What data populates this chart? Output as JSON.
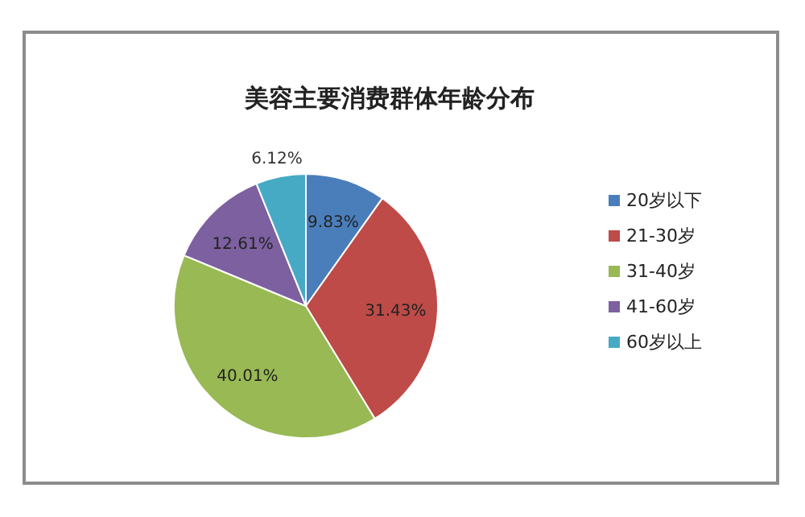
{
  "chart_data": {
    "type": "pie",
    "title": "美容主要消费群体年龄分布",
    "categories": [
      "20岁以下",
      "21-30岁",
      "31-40岁",
      "41-60岁",
      "60岁以上"
    ],
    "values": [
      9.83,
      31.43,
      40.01,
      12.61,
      6.12
    ],
    "value_labels": [
      "9.83%",
      "31.43%",
      "40.01%",
      "12.61%",
      "6.12%"
    ],
    "colors": [
      "#4a7ebb",
      "#be4b48",
      "#98b954",
      "#7d60a0",
      "#46aac5"
    ],
    "legend": "right"
  }
}
